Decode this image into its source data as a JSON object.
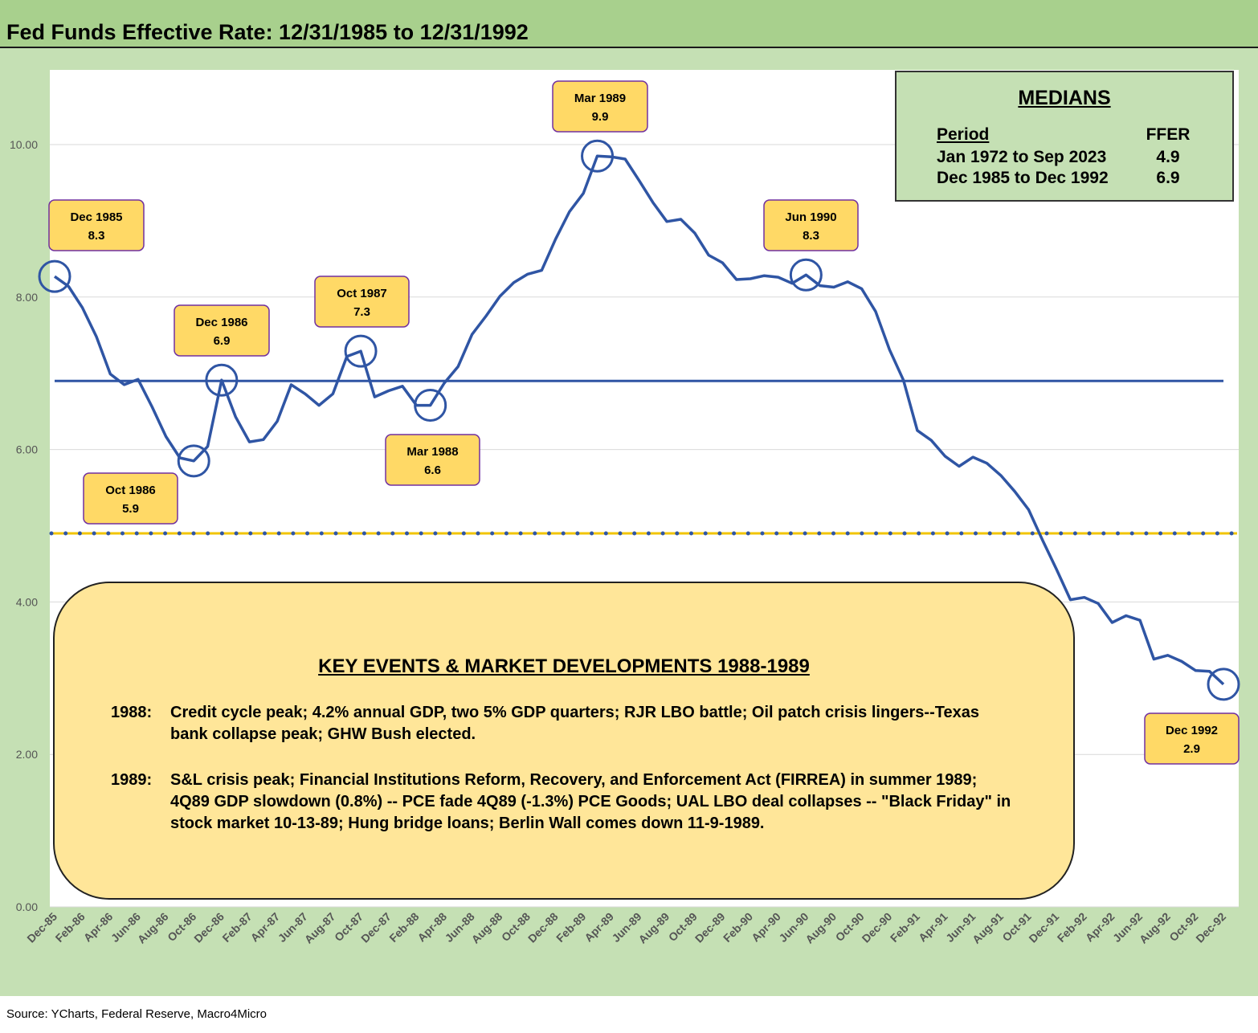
{
  "title": "Fed Funds Effective Rate: 12/31/1985 to 12/31/1992",
  "source": "Source: YCharts, Federal Reserve, Macro4Micro",
  "colors": {
    "header": "#a8d08d",
    "frame": "#c5e0b4",
    "series": "#2f55a4",
    "median_long": "#f2c400",
    "callout_fill": "#ffd966",
    "callout_border": "#7030a0",
    "events_fill": "#ffe699"
  },
  "medians": {
    "title": "MEDIANS",
    "col_period": "Period",
    "col_ffer": "FFER",
    "rows": [
      {
        "period": "Jan 1972 to Sep 2023",
        "ffer": "4.9"
      },
      {
        "period": "Dec 1985 to Dec 1992",
        "ffer": "6.9"
      }
    ]
  },
  "events": {
    "title": "KEY EVENTS & MARKET DEVELOPMENTS 1988-1989",
    "items": [
      {
        "year": "1988:",
        "text": "Credit cycle peak; 4.2% annual GDP, two 5% GDP quarters; RJR LBO battle; Oil patch crisis lingers--Texas bank collapse peak; GHW Bush elected."
      },
      {
        "year": "1989:",
        "text": "S&L crisis peak; Financial Institutions Reform, Recovery, and Enforcement Act (FIRREA) in summer 1989; 4Q89 GDP slowdown (0.8%) -- PCE fade 4Q89 (-1.3%) PCE Goods; UAL LBO deal collapses -- \"Black Friday\" in stock market 10-13-89; Hung bridge loans; Berlin Wall comes down 11-9-1989."
      }
    ]
  },
  "chart_data": {
    "type": "line",
    "title": "Fed Funds Effective Rate: 12/31/1985 to 12/31/1992",
    "ylim": [
      0,
      11
    ],
    "yticks": [
      "0.00",
      "2.00",
      "4.00",
      "6.00",
      "8.00",
      "10.00"
    ],
    "xtick_labels": [
      "Dec-85",
      "Feb-86",
      "Apr-86",
      "Jun-86",
      "Aug-86",
      "Oct-86",
      "Dec-86",
      "Feb-87",
      "Apr-87",
      "Jun-87",
      "Aug-87",
      "Oct-87",
      "Dec-87",
      "Feb-88",
      "Apr-88",
      "Jun-88",
      "Aug-88",
      "Oct-88",
      "Dec-88",
      "Feb-89",
      "Apr-89",
      "Jun-89",
      "Aug-89",
      "Oct-89",
      "Dec-89",
      "Feb-90",
      "Apr-90",
      "Jun-90",
      "Aug-90",
      "Oct-90",
      "Dec-90",
      "Feb-91",
      "Apr-91",
      "Jun-91",
      "Aug-91",
      "Oct-91",
      "Dec-91",
      "Feb-92",
      "Apr-92",
      "Jun-92",
      "Aug-92",
      "Oct-92",
      "Dec-92"
    ],
    "x_start": "Dec-85",
    "x_end": "Dec-92",
    "series": [
      {
        "values": [
          8.27,
          8.14,
          7.86,
          7.48,
          6.99,
          6.85,
          6.92,
          6.56,
          6.17,
          5.89,
          5.85,
          6.04,
          6.91,
          6.43,
          6.1,
          6.13,
          6.37,
          6.85,
          6.73,
          6.58,
          6.73,
          7.22,
          7.29,
          6.69,
          6.77,
          6.83,
          6.58,
          6.58,
          6.87,
          7.09,
          7.51,
          7.75,
          8.01,
          8.19,
          8.3,
          8.35,
          8.76,
          9.12,
          9.36,
          9.85,
          9.84,
          9.81,
          9.53,
          9.24,
          8.99,
          9.02,
          8.84,
          8.55,
          8.45,
          8.23,
          8.24,
          8.28,
          8.26,
          8.18,
          8.29,
          8.15,
          8.13,
          8.2,
          8.11,
          7.81,
          7.31,
          6.91,
          6.25,
          6.12,
          5.91,
          5.78,
          5.9,
          5.82,
          5.66,
          5.45,
          5.21,
          4.81,
          4.43,
          4.03,
          4.06,
          3.98,
          3.73,
          3.82,
          3.76,
          3.25,
          3.3,
          3.22,
          3.1,
          3.09,
          2.92
        ]
      }
    ],
    "reference_lines": [
      {
        "value": 6.9,
        "label": "Dec 1985 to Dec 1992",
        "style": "solid"
      },
      {
        "value": 4.9,
        "label": "Jan 1972 to Sep 2023",
        "style": "dotted"
      }
    ],
    "callouts": [
      {
        "date": "Dec 1985",
        "value": "8.3",
        "index": 0
      },
      {
        "date": "Oct 1986",
        "value": "5.9",
        "index": 10
      },
      {
        "date": "Dec 1986",
        "value": "6.9",
        "index": 12
      },
      {
        "date": "Oct 1987",
        "value": "7.3",
        "index": 22
      },
      {
        "date": "Mar 1988",
        "value": "6.6",
        "index": 27
      },
      {
        "date": "Mar 1989",
        "value": "9.9",
        "index": 39
      },
      {
        "date": "Jun 1990",
        "value": "8.3",
        "index": 54
      },
      {
        "date": "Dec 1992",
        "value": "2.9",
        "index": 84
      }
    ],
    "grid": true,
    "legend": "none"
  }
}
